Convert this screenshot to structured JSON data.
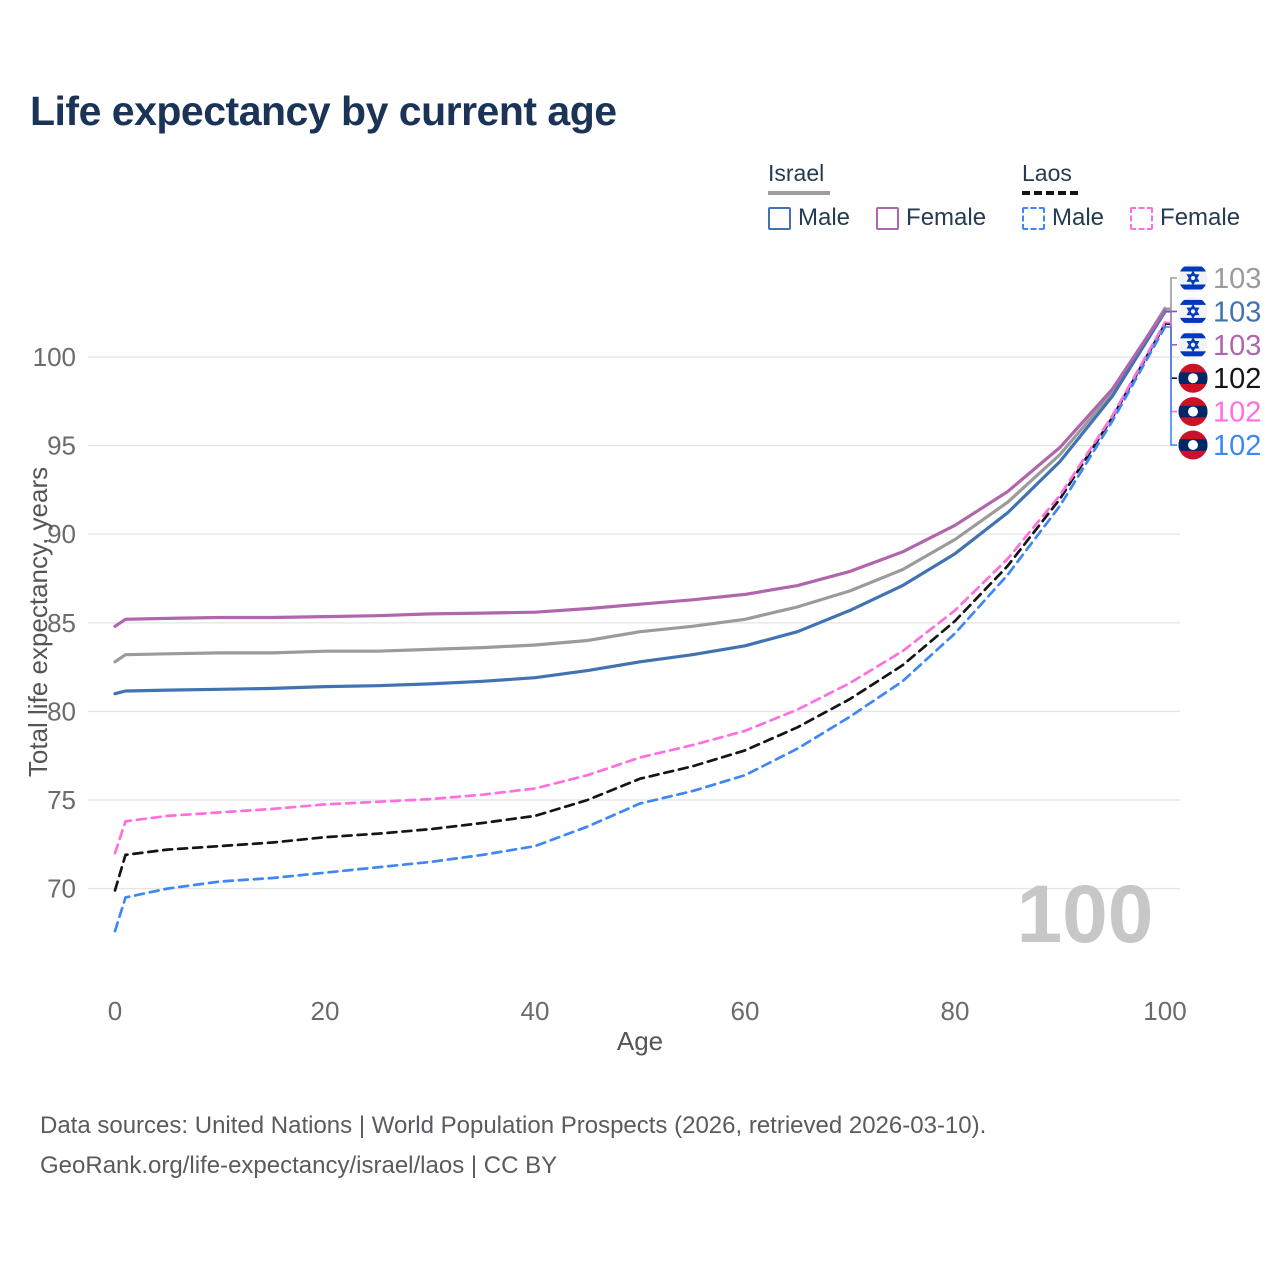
{
  "title": "Life expectancy by current age",
  "watermark_age": "100",
  "legend": {
    "groups": [
      {
        "country": "Israel",
        "line_style": "solid",
        "rule_color": "#9e9e9e",
        "rule_width": 62,
        "items": [
          {
            "label": "Male",
            "color": "#4173b3",
            "dash": false
          },
          {
            "label": "Female",
            "color": "#b066ac",
            "dash": false
          }
        ]
      },
      {
        "country": "Laos",
        "line_style": "dashed",
        "rule_color": "#151515",
        "rule_width": 56,
        "items": [
          {
            "label": "Male",
            "color": "#3f87f5",
            "dash": true
          },
          {
            "label": "Female",
            "color": "#ff70df",
            "dash": true
          }
        ]
      }
    ]
  },
  "footer": {
    "line1": "Data sources: United Nations | World Population Prospects (2026, retrieved 2026-03-10).",
    "line2": "GeoRank.org/life-expectancy/israel/laos | CC BY"
  },
  "chart_data": {
    "type": "line",
    "title": "Life expectancy by current age",
    "xlabel": "Age",
    "ylabel": "Total life expectancy, years",
    "x_ticks": [
      0,
      20,
      40,
      60,
      80,
      100
    ],
    "y_ticks": [
      70,
      75,
      80,
      85,
      90,
      95,
      100
    ],
    "xlim": [
      0,
      100
    ],
    "ylim": [
      66,
      104
    ],
    "grid": "horizontal",
    "legend_position": "top-right",
    "x": [
      0,
      1,
      5,
      10,
      15,
      20,
      25,
      30,
      35,
      40,
      45,
      50,
      55,
      60,
      65,
      70,
      75,
      80,
      85,
      90,
      95,
      100
    ],
    "series": [
      {
        "id": "israel-total",
        "name": "Israel",
        "sex": "Total",
        "color": "#9b9b9b",
        "dash": false,
        "flag": "israel",
        "end_label": "103",
        "values": [
          82.8,
          83.2,
          83.25,
          83.3,
          83.3,
          83.4,
          83.4,
          83.5,
          83.6,
          83.75,
          84.0,
          84.5,
          84.8,
          85.2,
          85.9,
          86.8,
          88.0,
          89.7,
          91.8,
          94.5,
          98.0,
          102.75
        ]
      },
      {
        "id": "israel-male",
        "name": "Israel",
        "sex": "Male",
        "color": "#4173b3",
        "dash": false,
        "flag": "israel",
        "end_label": "103",
        "values": [
          81.0,
          81.15,
          81.2,
          81.25,
          81.3,
          81.4,
          81.45,
          81.55,
          81.7,
          81.9,
          82.3,
          82.8,
          83.2,
          83.7,
          84.5,
          85.7,
          87.1,
          88.9,
          91.2,
          94.1,
          97.8,
          102.55
        ]
      },
      {
        "id": "israel-female",
        "name": "Israel",
        "sex": "Female",
        "color": "#b066ac",
        "dash": false,
        "flag": "israel",
        "end_label": "103",
        "values": [
          84.8,
          85.2,
          85.25,
          85.3,
          85.3,
          85.35,
          85.4,
          85.5,
          85.55,
          85.6,
          85.8,
          86.05,
          86.3,
          86.6,
          87.1,
          87.9,
          89.0,
          90.5,
          92.4,
          94.9,
          98.2,
          102.65
        ]
      },
      {
        "id": "laos-total",
        "name": "Laos",
        "sex": "Total",
        "color": "#151515",
        "dash": true,
        "flag": "laos",
        "end_label": "102",
        "values": [
          69.9,
          71.9,
          72.2,
          72.4,
          72.6,
          72.9,
          73.1,
          73.35,
          73.7,
          74.1,
          75.0,
          76.2,
          76.9,
          77.8,
          79.1,
          80.7,
          82.6,
          85.1,
          88.2,
          92.0,
          96.6,
          101.85
        ]
      },
      {
        "id": "laos-female",
        "name": "Laos",
        "sex": "Female",
        "color": "#ff70df",
        "dash": true,
        "flag": "laos",
        "end_label": "102",
        "values": [
          72.0,
          73.8,
          74.1,
          74.3,
          74.5,
          74.75,
          74.9,
          75.05,
          75.3,
          75.65,
          76.4,
          77.4,
          78.1,
          78.9,
          80.1,
          81.6,
          83.4,
          85.7,
          88.6,
          92.2,
          96.7,
          101.95
        ]
      },
      {
        "id": "laos-male",
        "name": "Laos",
        "sex": "Male",
        "color": "#3f87f5",
        "dash": true,
        "flag": "laos",
        "end_label": "102",
        "values": [
          67.6,
          69.5,
          70.0,
          70.4,
          70.6,
          70.9,
          71.2,
          71.5,
          71.9,
          72.4,
          73.5,
          74.8,
          75.5,
          76.4,
          77.9,
          79.7,
          81.7,
          84.4,
          87.7,
          91.6,
          96.4,
          101.7
        ]
      }
    ]
  }
}
